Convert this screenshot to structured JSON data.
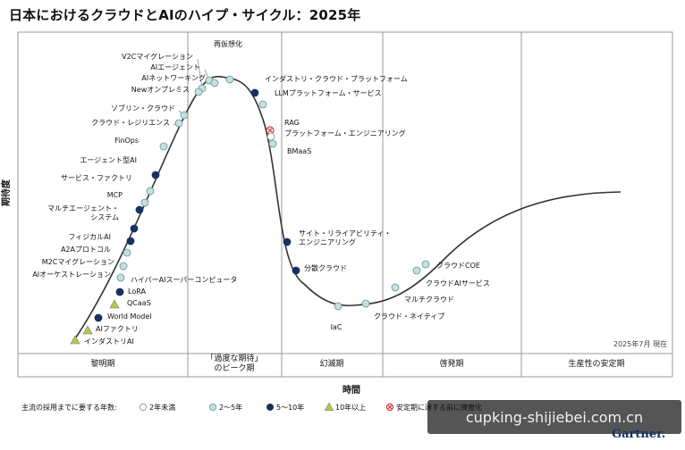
{
  "title": "日本におけるクラウドとAIのハイプ・サイクル：2025年",
  "footer": {
    "as_of": "2025年7月 現在",
    "watermark": "cupking-shijiebei.com.cn",
    "logo": "Gartner."
  },
  "colors": {
    "two_to_five": "#bfe2e2",
    "five_to_ten": "#16335f",
    "over_ten": "#b7c84a",
    "obsolete": "#d33c3c",
    "curve": "#333333",
    "frame": "#9a9a9a"
  },
  "chart_data": {
    "type": "scatter",
    "title": "日本におけるクラウドとAIのハイプ・サイクル：2025年",
    "ylabel": "期待度",
    "xlabel": "時間",
    "phases": [
      "黎明期",
      "「過度な期待」\nのピーク期",
      "幻滅期",
      "啓発期",
      "生産性の安定期"
    ],
    "legend": {
      "title": "主流の採用までに要する年数:",
      "items": [
        {
          "key": "lt2",
          "label": "2年未満",
          "marker": "open-circle"
        },
        {
          "key": "2to5",
          "label": "2〜5年",
          "marker": "light-circle"
        },
        {
          "key": "5to10",
          "label": "5〜10年",
          "marker": "dark-circle"
        },
        {
          "key": "gt10",
          "label": "10年以上",
          "marker": "triangle"
        },
        {
          "key": "obs",
          "label": "安定期に達する前に陳腐化",
          "marker": "cross-circle"
        }
      ]
    },
    "points": [
      {
        "label": "V2Cマイグレーション",
        "category": "2to5"
      },
      {
        "label": "AIエージェント",
        "category": "2to5"
      },
      {
        "label": "AIネットワーキング",
        "category": "2to5"
      },
      {
        "label": "Newオンプレミス",
        "category": "2to5"
      },
      {
        "label": "ソブリン・クラウド",
        "category": "2to5"
      },
      {
        "label": "クラウド・レジリエンス",
        "category": "2to5"
      },
      {
        "label": "FinOps",
        "category": "2to5"
      },
      {
        "label": "エージェント型AI",
        "category": "5to10"
      },
      {
        "label": "サービス・ファクトリ",
        "category": "2to5"
      },
      {
        "label": "MCP",
        "category": "2to5"
      },
      {
        "label": "マルチエージェント・\nシステム",
        "category": "5to10"
      },
      {
        "label": "フィジカルAI",
        "category": "5to10"
      },
      {
        "label": "A2Aプロトコル",
        "category": "5to10"
      },
      {
        "label": "M2Cマイグレーション",
        "category": "2to5"
      },
      {
        "label": "AIオーケストレーション",
        "category": "2to5"
      },
      {
        "label": "ハイパーAIスーパーコンピュータ",
        "category": "2to5"
      },
      {
        "label": "LoRA",
        "category": "5to10"
      },
      {
        "label": "QCaaS",
        "category": "gt10"
      },
      {
        "label": "World Model",
        "category": "5to10"
      },
      {
        "label": "AIファクトリ",
        "category": "gt10"
      },
      {
        "label": "インダストリAI",
        "category": "gt10"
      },
      {
        "label": "再仮想化",
        "category": "2to5"
      },
      {
        "label": "インダストリ・クラウド・プラットフォーム",
        "category": "5to10"
      },
      {
        "label": "LLMプラットフォーム・サービス",
        "category": "2to5"
      },
      {
        "label": "RAG",
        "category": "obs"
      },
      {
        "label": "プラットフォーム・エンジニアリング",
        "category": "lt2"
      },
      {
        "label": "BMaaS",
        "category": "2to5"
      },
      {
        "label": "サイト・リライアビリティ・\nエンジニアリング",
        "category": "5to10"
      },
      {
        "label": "分散クラウド",
        "category": "5to10"
      },
      {
        "label": "IaC",
        "category": "2to5"
      },
      {
        "label": "クラウド・ネイティブ",
        "category": "2to5"
      },
      {
        "label": "マルチクラウド",
        "category": "2to5"
      },
      {
        "label": "クラウドAIサービス",
        "category": "2to5"
      },
      {
        "label": "クラウドCOE",
        "category": "2to5"
      }
    ]
  }
}
